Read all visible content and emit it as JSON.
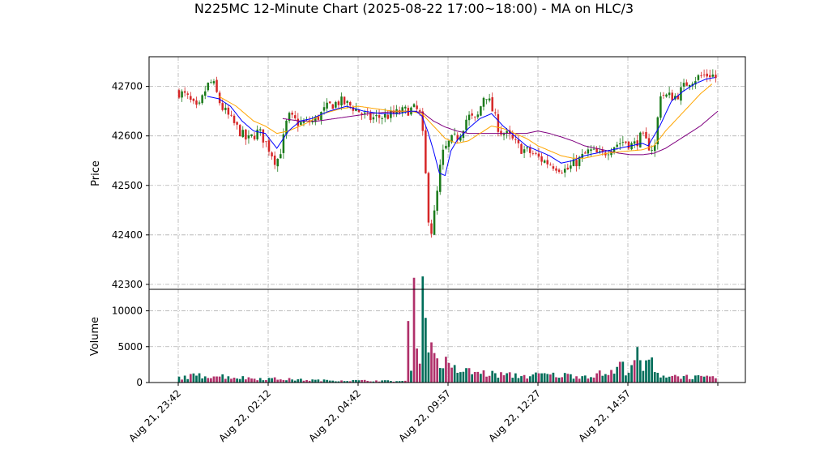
{
  "chart_data": {
    "title": "N225MC 12-Minute Chart (2025-08-22 17:00~18:00) - MA on HLC/3",
    "type": "candlestick",
    "colors": {
      "up": "#1a7a1a",
      "down": "#d62728",
      "ma_short": "#0000ff",
      "ma_mid": "#ffa500",
      "ma_long": "#800080",
      "vol_up": "#006e5a",
      "vol_down": "#b0306a"
    },
    "price_panel": {
      "ylabel": "Price",
      "ylim": [
        42290,
        42760
      ],
      "yticks": [
        42300,
        42400,
        42500,
        42600,
        42700
      ],
      "ytick_labels": [
        "42300",
        "42400",
        "42500",
        "42600",
        "42700"
      ]
    },
    "volume_panel": {
      "ylabel": "Volume",
      "ylim": [
        0,
        13000
      ],
      "yticks": [
        0,
        5000,
        10000
      ],
      "ytick_labels": [
        "0",
        "5000",
        "10000"
      ]
    },
    "x": {
      "n_bars": 186,
      "xticks": [
        0,
        31,
        62,
        93,
        124,
        155,
        186
      ],
      "xtick_labels": [
        "Aug 21, 23:42",
        "Aug 22, 02:12",
        "Aug 22, 04:42",
        "Aug 22, 09:57",
        "Aug 22, 12:27",
        "Aug 22, 14:57",
        ""
      ]
    },
    "series": [
      {
        "name": "Candles",
        "anchors": [
          [
            0,
            42690
          ],
          [
            3,
            42680
          ],
          [
            7,
            42650
          ],
          [
            10,
            42700
          ],
          [
            12,
            42710
          ],
          [
            15,
            42660
          ],
          [
            20,
            42620
          ],
          [
            24,
            42590
          ],
          [
            28,
            42610
          ],
          [
            32,
            42570
          ],
          [
            34,
            42545
          ],
          [
            36,
            42580
          ],
          [
            38,
            42640
          ],
          [
            42,
            42625
          ],
          [
            47,
            42630
          ],
          [
            52,
            42660
          ],
          [
            56,
            42670
          ],
          [
            60,
            42660
          ],
          [
            66,
            42635
          ],
          [
            72,
            42640
          ],
          [
            78,
            42650
          ],
          [
            82,
            42655
          ],
          [
            84,
            42640
          ],
          [
            85,
            42560
          ],
          [
            86,
            42480
          ],
          [
            87,
            42390
          ],
          [
            89,
            42460
          ],
          [
            91,
            42560
          ],
          [
            94,
            42590
          ],
          [
            97,
            42600
          ],
          [
            100,
            42640
          ],
          [
            103,
            42630
          ],
          [
            106,
            42690
          ],
          [
            108,
            42660
          ],
          [
            111,
            42610
          ],
          [
            114,
            42600
          ],
          [
            118,
            42575
          ],
          [
            122,
            42565
          ],
          [
            126,
            42550
          ],
          [
            130,
            42540
          ],
          [
            134,
            42530
          ],
          [
            138,
            42550
          ],
          [
            142,
            42570
          ],
          [
            146,
            42560
          ],
          [
            150,
            42580
          ],
          [
            154,
            42590
          ],
          [
            157,
            42580
          ],
          [
            160,
            42600
          ],
          [
            163,
            42575
          ],
          [
            165,
            42580
          ],
          [
            166,
            42690
          ],
          [
            168,
            42680
          ],
          [
            172,
            42680
          ],
          [
            176,
            42710
          ],
          [
            180,
            42720
          ],
          [
            184,
            42725
          ],
          [
            186,
            42715
          ]
        ]
      },
      {
        "name": "MA short",
        "anchors": [
          [
            10,
            42680
          ],
          [
            14,
            42675
          ],
          [
            18,
            42660
          ],
          [
            22,
            42630
          ],
          [
            26,
            42610
          ],
          [
            30,
            42605
          ],
          [
            34,
            42575
          ],
          [
            38,
            42610
          ],
          [
            42,
            42630
          ],
          [
            46,
            42635
          ],
          [
            52,
            42650
          ],
          [
            58,
            42660
          ],
          [
            64,
            42650
          ],
          [
            70,
            42645
          ],
          [
            76,
            42645
          ],
          [
            80,
            42650
          ],
          [
            82,
            42650
          ],
          [
            84,
            42640
          ],
          [
            86,
            42610
          ],
          [
            88,
            42570
          ],
          [
            90,
            42525
          ],
          [
            92,
            42520
          ],
          [
            94,
            42570
          ],
          [
            96,
            42590
          ],
          [
            100,
            42615
          ],
          [
            104,
            42635
          ],
          [
            108,
            42645
          ],
          [
            112,
            42620
          ],
          [
            116,
            42600
          ],
          [
            120,
            42580
          ],
          [
            124,
            42570
          ],
          [
            128,
            42560
          ],
          [
            132,
            42545
          ],
          [
            136,
            42550
          ],
          [
            140,
            42560
          ],
          [
            144,
            42565
          ],
          [
            148,
            42570
          ],
          [
            152,
            42575
          ],
          [
            156,
            42580
          ],
          [
            160,
            42585
          ],
          [
            162,
            42580
          ],
          [
            166,
            42620
          ],
          [
            170,
            42670
          ],
          [
            174,
            42690
          ],
          [
            178,
            42705
          ],
          [
            182,
            42715
          ],
          [
            185,
            42718
          ]
        ]
      },
      {
        "name": "MA mid",
        "anchors": [
          [
            14,
            42680
          ],
          [
            20,
            42660
          ],
          [
            26,
            42630
          ],
          [
            30,
            42620
          ],
          [
            34,
            42605
          ],
          [
            38,
            42610
          ],
          [
            44,
            42625
          ],
          [
            50,
            42645
          ],
          [
            56,
            42655
          ],
          [
            62,
            42660
          ],
          [
            68,
            42655
          ],
          [
            74,
            42650
          ],
          [
            80,
            42650
          ],
          [
            84,
            42645
          ],
          [
            88,
            42620
          ],
          [
            92,
            42595
          ],
          [
            96,
            42585
          ],
          [
            100,
            42590
          ],
          [
            104,
            42605
          ],
          [
            108,
            42620
          ],
          [
            112,
            42615
          ],
          [
            116,
            42605
          ],
          [
            120,
            42595
          ],
          [
            124,
            42580
          ],
          [
            128,
            42570
          ],
          [
            132,
            42560
          ],
          [
            136,
            42555
          ],
          [
            140,
            42555
          ],
          [
            144,
            42560
          ],
          [
            148,
            42565
          ],
          [
            152,
            42568
          ],
          [
            156,
            42570
          ],
          [
            160,
            42572
          ],
          [
            164,
            42580
          ],
          [
            168,
            42610
          ],
          [
            172,
            42635
          ],
          [
            176,
            42660
          ],
          [
            180,
            42685
          ],
          [
            184,
            42705
          ]
        ]
      },
      {
        "name": "MA long",
        "anchors": [
          [
            36,
            42635
          ],
          [
            42,
            42630
          ],
          [
            48,
            42630
          ],
          [
            54,
            42635
          ],
          [
            60,
            42640
          ],
          [
            66,
            42645
          ],
          [
            72,
            42648
          ],
          [
            78,
            42650
          ],
          [
            84,
            42648
          ],
          [
            88,
            42630
          ],
          [
            92,
            42618
          ],
          [
            96,
            42610
          ],
          [
            100,
            42605
          ],
          [
            104,
            42605
          ],
          [
            108,
            42605
          ],
          [
            112,
            42605
          ],
          [
            116,
            42605
          ],
          [
            120,
            42605
          ],
          [
            124,
            42610
          ],
          [
            128,
            42605
          ],
          [
            132,
            42598
          ],
          [
            136,
            42590
          ],
          [
            140,
            42580
          ],
          [
            144,
            42575
          ],
          [
            148,
            42570
          ],
          [
            152,
            42565
          ],
          [
            156,
            42562
          ],
          [
            160,
            42562
          ],
          [
            164,
            42565
          ],
          [
            168,
            42575
          ],
          [
            172,
            42590
          ],
          [
            176,
            42605
          ],
          [
            180,
            42620
          ],
          [
            184,
            42640
          ],
          [
            186,
            42650
          ]
        ]
      },
      {
        "name": "Volume",
        "anchors": [
          [
            0,
            700
          ],
          [
            5,
            900
          ],
          [
            10,
            1000
          ],
          [
            15,
            900
          ],
          [
            20,
            700
          ],
          [
            25,
            600
          ],
          [
            30,
            550
          ],
          [
            35,
            500
          ],
          [
            40,
            400
          ],
          [
            45,
            350
          ],
          [
            50,
            300
          ],
          [
            55,
            300
          ],
          [
            60,
            280
          ],
          [
            65,
            260
          ],
          [
            70,
            250
          ],
          [
            74,
            200
          ],
          [
            78,
            200
          ],
          [
            79,
            6500
          ],
          [
            80,
            2800
          ],
          [
            81,
            10200
          ],
          [
            82,
            8500
          ],
          [
            83,
            4500
          ],
          [
            84,
            12800
          ],
          [
            85,
            9800
          ],
          [
            86,
            7200
          ],
          [
            87,
            4200
          ],
          [
            88,
            4800
          ],
          [
            89,
            3000
          ],
          [
            90,
            2500
          ],
          [
            91,
            3200
          ],
          [
            93,
            2000
          ],
          [
            95,
            1800
          ],
          [
            100,
            1500
          ],
          [
            105,
            1300
          ],
          [
            110,
            1100
          ],
          [
            115,
            1000
          ],
          [
            120,
            900
          ],
          [
            125,
            1100
          ],
          [
            130,
            1000
          ],
          [
            135,
            1000
          ],
          [
            140,
            900
          ],
          [
            145,
            1200
          ],
          [
            150,
            1400
          ],
          [
            152,
            2500
          ],
          [
            154,
            1800
          ],
          [
            156,
            2800
          ],
          [
            158,
            3500
          ],
          [
            160,
            1500
          ],
          [
            162,
            3800
          ],
          [
            164,
            1200
          ],
          [
            168,
            1000
          ],
          [
            172,
            900
          ],
          [
            176,
            800
          ],
          [
            180,
            700
          ],
          [
            185,
            600
          ]
        ]
      }
    ]
  }
}
